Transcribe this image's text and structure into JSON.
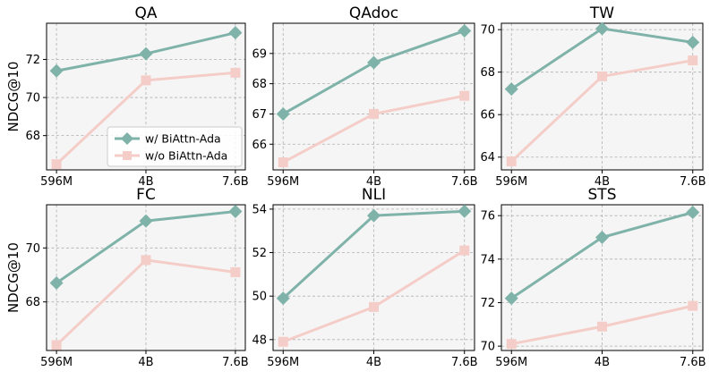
{
  "chart_data": [
    {
      "type": "line",
      "title": "QA",
      "ylabel": "NDCG@10",
      "categories": [
        "596M",
        "4B",
        "7.6B"
      ],
      "yticks": [
        68,
        70,
        72
      ],
      "ylim": [
        66.2,
        73.9
      ],
      "series": [
        {
          "name": "w/ BiAttn-Ada",
          "values": [
            71.4,
            72.3,
            73.4
          ]
        },
        {
          "name": "w/o BiAttn-Ada",
          "values": [
            66.5,
            70.9,
            71.3
          ]
        }
      ]
    },
    {
      "type": "line",
      "title": "QAdoc",
      "ylabel": "",
      "categories": [
        "596M",
        "4B",
        "7.6B"
      ],
      "yticks": [
        66,
        67,
        68,
        69
      ],
      "ylim": [
        65.15,
        70.0
      ],
      "series": [
        {
          "name": "w/ BiAttn-Ada",
          "values": [
            67.0,
            68.7,
            69.75
          ]
        },
        {
          "name": "w/o BiAttn-Ada",
          "values": [
            65.4,
            67.0,
            67.6
          ]
        }
      ]
    },
    {
      "type": "line",
      "title": "TW",
      "ylabel": "",
      "categories": [
        "596M",
        "4B",
        "7.6B"
      ],
      "yticks": [
        64,
        66,
        68,
        70
      ],
      "ylim": [
        63.4,
        70.3
      ],
      "series": [
        {
          "name": "w/ BiAttn-Ada",
          "values": [
            67.2,
            70.05,
            69.4
          ]
        },
        {
          "name": "w/o BiAttn-Ada",
          "values": [
            63.8,
            67.8,
            68.55
          ]
        }
      ]
    },
    {
      "type": "line",
      "title": "FC",
      "ylabel": "NDCG@10",
      "categories": [
        "596M",
        "4B",
        "7.6B"
      ],
      "yticks": [
        68,
        70
      ],
      "ylim": [
        66.2,
        71.6
      ],
      "series": [
        {
          "name": "w/ BiAttn-Ada",
          "values": [
            68.7,
            71.0,
            71.35
          ]
        },
        {
          "name": "w/o BiAttn-Ada",
          "values": [
            66.4,
            69.55,
            69.1
          ]
        }
      ]
    },
    {
      "type": "line",
      "title": "NLI",
      "ylabel": "",
      "categories": [
        "596M",
        "4B",
        "7.6B"
      ],
      "yticks": [
        48,
        50,
        52,
        54
      ],
      "ylim": [
        47.5,
        54.2
      ],
      "series": [
        {
          "name": "w/ BiAttn-Ada",
          "values": [
            49.9,
            53.7,
            53.9
          ]
        },
        {
          "name": "w/o BiAttn-Ada",
          "values": [
            47.9,
            49.5,
            52.1
          ]
        }
      ]
    },
    {
      "type": "line",
      "title": "STS",
      "ylabel": "",
      "categories": [
        "596M",
        "4B",
        "7.6B"
      ],
      "yticks": [
        70,
        72,
        74,
        76
      ],
      "ylim": [
        69.8,
        76.5
      ],
      "series": [
        {
          "name": "w/ BiAttn-Ada",
          "values": [
            72.2,
            75.0,
            76.15
          ]
        },
        {
          "name": "w/o BiAttn-Ada",
          "values": [
            70.1,
            70.9,
            71.85
          ]
        }
      ]
    }
  ],
  "legend": {
    "location": "lower-right of first panel",
    "entries": [
      "w/ BiAttn-Ada",
      "w/o BiAttn-Ada"
    ]
  },
  "colors": {
    "with": "#7fb3a9",
    "without": "#f5cdc8"
  }
}
